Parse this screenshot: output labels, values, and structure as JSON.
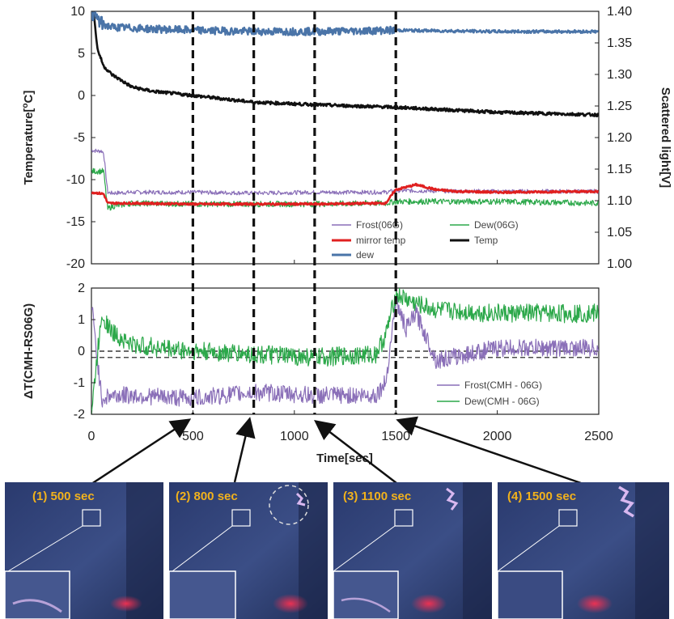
{
  "chart_data": [
    {
      "type": "line",
      "panel": "top",
      "ylabel": "Temperature[oC]",
      "ylabel_base": "Temperature[",
      "ylabel_sup": "o",
      "ylabel_end": "C]",
      "y2label": "Scattered light[V]",
      "xlim": [
        0,
        2500
      ],
      "ylim": [
        -20,
        10
      ],
      "y2lim": [
        1.0,
        1.4
      ],
      "yticks": [
        "10",
        "5",
        "0",
        "-5",
        "-10",
        "-15",
        "-20"
      ],
      "y2ticks": [
        "1.40",
        "1.35",
        "1.30",
        "1.25",
        "1.20",
        "1.15",
        "1.10",
        "1.05",
        "1.00"
      ],
      "legend": "inside-bottom-right",
      "series": [
        {
          "name": "Frost(06G)",
          "color": "#8a6fb8",
          "axis": "left",
          "x": [
            0,
            30,
            50,
            60,
            80,
            100,
            200,
            500,
            800,
            1100,
            1450,
            1500,
            2000,
            2500
          ],
          "y": [
            -6.5,
            -6.6,
            -6.6,
            -6.8,
            -11.5,
            -11.6,
            -11.5,
            -11.5,
            -11.6,
            -11.5,
            -11.5,
            -11.3,
            -11.4,
            -11.4
          ]
        },
        {
          "name": "Dew(06G)",
          "color": "#2ca84a",
          "axis": "left",
          "x": [
            0,
            30,
            60,
            80,
            100,
            200,
            500,
            800,
            1100,
            1450,
            1500,
            2000,
            2500
          ],
          "y": [
            -9,
            -9,
            -9,
            -13.5,
            -13.2,
            -12.8,
            -12.9,
            -12.9,
            -12.9,
            -12.8,
            -12.6,
            -12.6,
            -12.8
          ]
        },
        {
          "name": "mirror temp",
          "color": "#e02020",
          "axis": "left",
          "x": [
            0,
            30,
            60,
            80,
            100,
            200,
            500,
            800,
            1100,
            1450,
            1500,
            1600,
            1700,
            1800,
            2000,
            2500
          ],
          "y": [
            -11.5,
            -11.6,
            -11.7,
            -12.8,
            -12.8,
            -12.8,
            -12.9,
            -12.9,
            -12.9,
            -12.8,
            -11.2,
            -10.6,
            -11.2,
            -11.4,
            -11.5,
            -11.4
          ]
        },
        {
          "name": "Temp",
          "color": "#111111",
          "axis": "left",
          "x": [
            0,
            10,
            30,
            60,
            100,
            200,
            300,
            500,
            800,
            1100,
            1500,
            2000,
            2500
          ],
          "y": [
            10,
            10,
            5.5,
            3.5,
            2.5,
            1.0,
            0.5,
            0.0,
            -0.8,
            -1.1,
            -1.4,
            -2.0,
            -2.3
          ]
        },
        {
          "name": "dew",
          "color": "#4a74a8",
          "axis": "right",
          "x": [
            0,
            50,
            100,
            300,
            500,
            800,
            1100,
            1500,
            2000,
            2500
          ],
          "y": [
            1.4,
            1.38,
            1.375,
            1.372,
            1.37,
            1.368,
            1.368,
            1.37,
            1.368,
            1.368
          ]
        }
      ]
    },
    {
      "type": "line",
      "panel": "bottom",
      "ylabel": "ΔT(CMH-RS06G)",
      "xlabel": "Time[sec]",
      "xlim": [
        0,
        2500
      ],
      "xticks": [
        "0",
        "500",
        "1000",
        "1500",
        "2000",
        "2500"
      ],
      "ylim": [
        -2,
        2
      ],
      "yticks": [
        "2",
        "1",
        "0",
        "-1",
        "-2"
      ],
      "hlines": [
        0.0,
        -0.2
      ],
      "legend": "inside-bottom-right",
      "series": [
        {
          "name": "Frost(CMH - 06G)",
          "color": "#8a6fb8",
          "x": [
            0,
            50,
            100,
            200,
            500,
            800,
            1100,
            1400,
            1450,
            1500,
            1550,
            1600,
            1700,
            2000,
            2500
          ],
          "y": [
            1.5,
            -1.5,
            -1.4,
            -1.4,
            -1.5,
            -1.3,
            -1.4,
            -1.4,
            -1.0,
            1.6,
            0.7,
            1.2,
            -0.3,
            0.1,
            0.1
          ]
        },
        {
          "name": "Dew(CMH - 06G)",
          "color": "#2ca84a",
          "x": [
            0,
            50,
            100,
            200,
            500,
            800,
            1100,
            1400,
            1450,
            1500,
            1600,
            1700,
            2000,
            2500
          ],
          "y": [
            -2,
            1.2,
            0.6,
            0.2,
            0.0,
            -0.1,
            -0.2,
            -0.1,
            0.5,
            1.8,
            1.5,
            1.3,
            1.2,
            1.2
          ]
        }
      ]
    }
  ],
  "markers": [
    500,
    800,
    1100,
    1500
  ],
  "photos": [
    {
      "label": "(1) 500 sec"
    },
    {
      "label": "(2) 800 sec"
    },
    {
      "label": "(3) 1100 sec"
    },
    {
      "label": "(4) 1500 sec"
    }
  ],
  "colors": {
    "frost": "#8a6fb8",
    "dew": "#2ca84a",
    "mirror": "#e02020",
    "temp": "#111111",
    "light": "#4a74a8",
    "label": "#f2b21c"
  }
}
